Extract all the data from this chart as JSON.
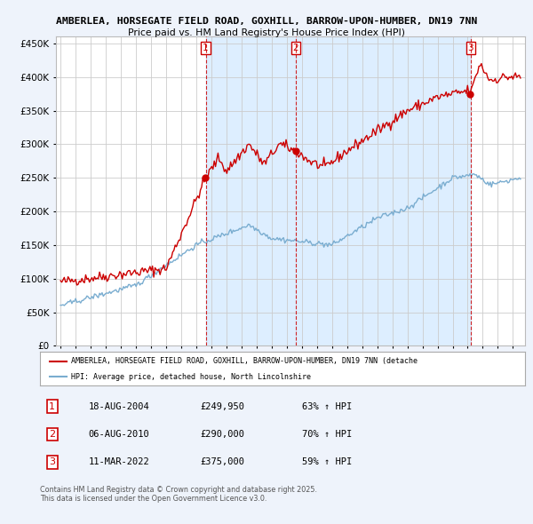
{
  "title1": "AMBERLEA, HORSEGATE FIELD ROAD, GOXHILL, BARROW-UPON-HUMBER, DN19 7NN",
  "title2": "Price paid vs. HM Land Registry's House Price Index (HPI)",
  "bg_color": "#EEF3FB",
  "plot_bg_color": "#FFFFFF",
  "shade_color": "#DDEEFF",
  "red_color": "#CC0000",
  "blue_color": "#7AADD0",
  "ylim": [
    0,
    460000
  ],
  "yticks": [
    0,
    50000,
    100000,
    150000,
    200000,
    250000,
    300000,
    350000,
    400000,
    450000
  ],
  "sale_dates": [
    2004.63,
    2010.6,
    2022.19
  ],
  "sale_prices": [
    249950,
    290000,
    375000
  ],
  "sale_labels": [
    "1",
    "2",
    "3"
  ],
  "legend_red": "AMBERLEA, HORSEGATE FIELD ROAD, GOXHILL, BARROW-UPON-HUMBER, DN19 7NN (detache",
  "legend_blue": "HPI: Average price, detached house, North Lincolnshire",
  "table_data": [
    [
      "1",
      "18-AUG-2004",
      "£249,950",
      "63% ↑ HPI"
    ],
    [
      "2",
      "06-AUG-2010",
      "£290,000",
      "70% ↑ HPI"
    ],
    [
      "3",
      "11-MAR-2022",
      "£375,000",
      "59% ↑ HPI"
    ]
  ],
  "footnote": "Contains HM Land Registry data © Crown copyright and database right 2025.\nThis data is licensed under the Open Government Licence v3.0."
}
